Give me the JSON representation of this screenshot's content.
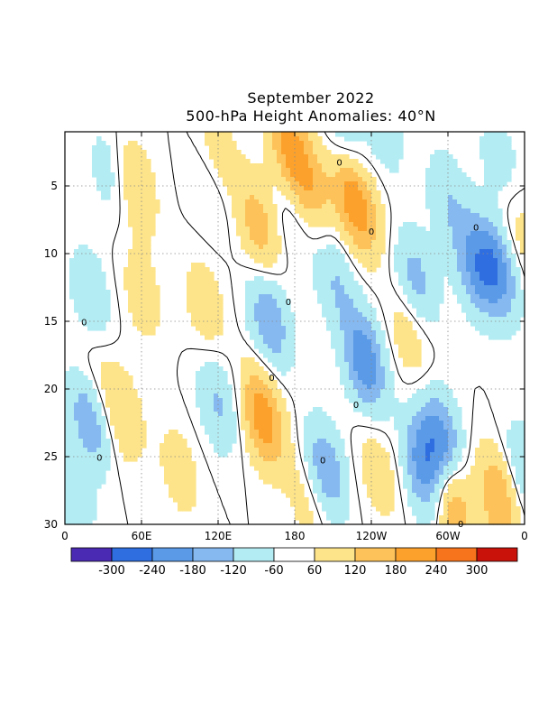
{
  "chart_data": {
    "type": "heatmap",
    "title": "September 2022",
    "subtitle": "500-hPa Height Anomalies: 40°N",
    "xlabel": "",
    "ylabel": "",
    "x_ticks": [
      "0",
      "60E",
      "120E",
      "180",
      "120W",
      "60W",
      "0"
    ],
    "x_tick_values": [
      0,
      60,
      120,
      180,
      240,
      300,
      360
    ],
    "xlim": [
      0,
      360
    ],
    "y_ticks": [
      "5",
      "10",
      "15",
      "20",
      "25",
      "30"
    ],
    "y_tick_values": [
      5,
      10,
      15,
      20,
      25,
      30
    ],
    "ylim": [
      1,
      30
    ],
    "y_inverted": true,
    "grid": true,
    "colorbar": {
      "labels": [
        "-300",
        "-240",
        "-180",
        "-120",
        "-60",
        "60",
        "120",
        "180",
        "240",
        "300"
      ],
      "colors": [
        "#4b2ab3",
        "#2f6ee0",
        "#5a9ae6",
        "#86b9f0",
        "#b4ecf3",
        "#ffffff",
        "#fde48a",
        "#fdc35a",
        "#fca22c",
        "#f8741c",
        "#c8120a"
      ]
    },
    "contour_label": "0",
    "anomaly_features": [
      {
        "lon": 155,
        "day": 22,
        "value": 200
      },
      {
        "lon": 152,
        "day": 8,
        "value": 130
      },
      {
        "lon": 175,
        "day": 2,
        "value": 150
      },
      {
        "lon": 190,
        "day": 5,
        "value": 130
      },
      {
        "lon": 222,
        "day": 5,
        "value": 140
      },
      {
        "lon": 232,
        "day": 7,
        "value": 120
      },
      {
        "lon": 302,
        "day": 28,
        "value": 190
      },
      {
        "lon": 340,
        "day": 28,
        "value": 160
      },
      {
        "lon": 55,
        "day": 5,
        "value": 90
      },
      {
        "lon": 120,
        "day": 3,
        "value": 80
      },
      {
        "lon": 45,
        "day": 22,
        "value": 80
      },
      {
        "lon": 245,
        "day": 26,
        "value": 70
      },
      {
        "lon": 270,
        "day": 16,
        "value": 75
      },
      {
        "lon": 25,
        "day": 20,
        "value": 70
      },
      {
        "lon": 110,
        "day": 14,
        "value": 70
      },
      {
        "lon": 20,
        "day": 22,
        "value": -170
      },
      {
        "lon": 235,
        "day": 18,
        "value": -200
      },
      {
        "lon": 322,
        "day": 11,
        "value": -160
      },
      {
        "lon": 340,
        "day": 11,
        "value": -180
      },
      {
        "lon": 282,
        "day": 26,
        "value": -190
      },
      {
        "lon": 295,
        "day": 24,
        "value": -200
      },
      {
        "lon": 204,
        "day": 26,
        "value": -150
      },
      {
        "lon": 160,
        "day": 15,
        "value": -150
      },
      {
        "lon": 220,
        "day": 2,
        "value": -100
      },
      {
        "lon": 275,
        "day": 12,
        "value": -120
      },
      {
        "lon": 212,
        "day": 12,
        "value": -90
      },
      {
        "lon": 20,
        "day": 13,
        "value": -80
      },
      {
        "lon": 120,
        "day": 21,
        "value": -100
      },
      {
        "lon": 115,
        "day": 5,
        "value": -60
      },
      {
        "lon": 5,
        "day": 28,
        "value": -90
      },
      {
        "lon": 250,
        "day": 1,
        "value": -60
      },
      {
        "lon": 340,
        "day": 3,
        "value": -60
      },
      {
        "lon": 358,
        "day": 26,
        "value": -90
      },
      {
        "lon": 178,
        "day": 7,
        "value": -60
      },
      {
        "lon": 35,
        "day": 4,
        "value": -60
      },
      {
        "lon": 300,
        "day": 6,
        "value": -80
      },
      {
        "lon": 190,
        "day": 28,
        "value": 60
      },
      {
        "lon": 90,
        "day": 26,
        "value": 60
      },
      {
        "lon": 60,
        "day": 13,
        "value": 60
      },
      {
        "lon": 355,
        "day": 9,
        "value": 70
      }
    ]
  }
}
